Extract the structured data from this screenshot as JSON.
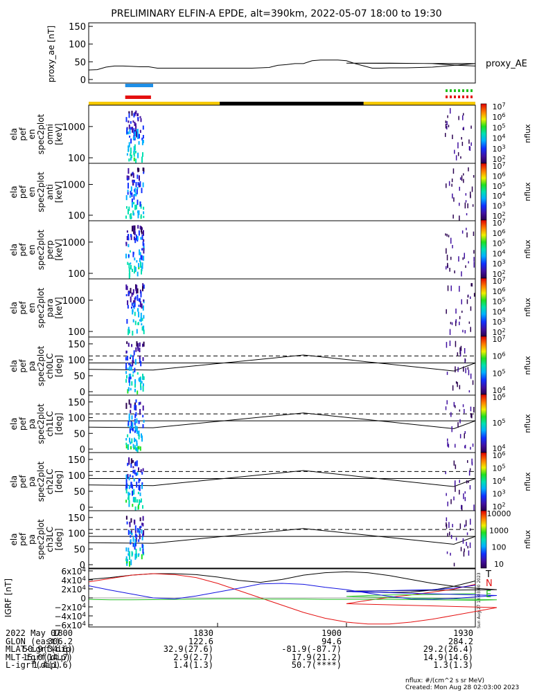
{
  "title": "PRELIMINARY ELFIN-A EPDE, alt=390km, 2022-05-07 18:00 to 19:30",
  "side_stamp": "Sun Aug 27 18:03:00 2023",
  "colors": {
    "yellow": "#f5c800",
    "black": "#000000",
    "blue_bar": "#1e8fe8",
    "red_bar": "#e41010",
    "green_bar": "#20c020",
    "red_dash": "#e41010"
  },
  "chart_data": [
    {
      "type": "line",
      "ylabel": "proxy_ae [nT]",
      "legend": "proxy_AE",
      "yticks": [
        "0",
        "50",
        "100",
        "150"
      ],
      "ylim": [
        -10,
        160
      ],
      "x": [
        1800,
        1802,
        1804,
        1806,
        1808,
        1810,
        1812,
        1814,
        1816,
        1820,
        1830,
        1838,
        1840,
        1842,
        1844,
        1846,
        1848,
        1850,
        1852,
        1854,
        1856,
        1858,
        1860,
        1862,
        1866,
        1868,
        1870,
        1874,
        1880,
        1890,
        1900,
        1910,
        1920,
        1926,
        1930
      ],
      "values": [
        27,
        28,
        35,
        38,
        38,
        37,
        36,
        36,
        32,
        32,
        32,
        32,
        33,
        34,
        40,
        42,
        45,
        45,
        53,
        55,
        55,
        55,
        53,
        45,
        32,
        32,
        33,
        33,
        35,
        45,
        46,
        46,
        45,
        40,
        38
      ]
    },
    {
      "type": "heatmap",
      "ylabel": "ela pef en spec2plot omni [keV]",
      "yticks": [
        "100",
        "1000"
      ],
      "colorbar": {
        "label": "nflux",
        "ticks": [
          "10^2",
          "10^3",
          "10^4",
          "10^5",
          "10^6",
          "10^7"
        ]
      }
    },
    {
      "type": "heatmap",
      "ylabel": "ela pef en spec2plot anti [keV]",
      "yticks": [
        "100",
        "1000"
      ],
      "colorbar": {
        "label": "nflux",
        "ticks": [
          "10^2",
          "10^3",
          "10^4",
          "10^5",
          "10^6",
          "10^7"
        ]
      }
    },
    {
      "type": "heatmap",
      "ylabel": "ela pef en spec2plot perp [keV]",
      "yticks": [
        "100",
        "1000"
      ],
      "colorbar": {
        "label": "nflux",
        "ticks": [
          "10^2",
          "10^3",
          "10^4",
          "10^5",
          "10^6",
          "10^7"
        ]
      }
    },
    {
      "type": "heatmap",
      "ylabel": "ela pef en spec2plot para [keV]",
      "yticks": [
        "100",
        "1000"
      ],
      "colorbar": {
        "label": "nflux",
        "ticks": [
          "10^2",
          "10^3",
          "10^4",
          "10^5",
          "10^6",
          "10^7"
        ]
      }
    },
    {
      "type": "heatmap",
      "ylabel": "ela pef pa spec2plot ch0LC [deg]",
      "yticks": [
        "0",
        "50",
        "100",
        "150"
      ],
      "colorbar": {
        "label": "nflux",
        "ticks": [
          "10^4",
          "10^5",
          "10^6",
          "10^7"
        ]
      }
    },
    {
      "type": "heatmap",
      "ylabel": "ela pef pa spec2plot ch1LC [deg]",
      "yticks": [
        "0",
        "50",
        "100",
        "150"
      ],
      "colorbar": {
        "label": "nflux",
        "ticks": [
          "10^4",
          "10^5",
          "10^6"
        ]
      }
    },
    {
      "type": "heatmap",
      "ylabel": "ela pef pa spec2plot ch2LC [deg]",
      "yticks": [
        "0",
        "50",
        "100",
        "150"
      ],
      "colorbar": {
        "label": "nflux",
        "ticks": [
          "10^2",
          "10^3",
          "10^4",
          "10^5",
          "10^6"
        ]
      }
    },
    {
      "type": "heatmap",
      "ylabel": "ela pef pa spec2plot ch3LC [deg]",
      "yticks": [
        "0",
        "50",
        "100",
        "150"
      ],
      "colorbar": {
        "label": "nflux",
        "ticks": [
          "10",
          "100",
          "1000",
          "10000"
        ]
      }
    },
    {
      "type": "line",
      "ylabel": "IGRF [nT]",
      "yticks": [
        "6x10^4",
        "4x10^4",
        "2x10^4",
        "0",
        "−2x10^4",
        "−4x10^4",
        "−6x10^4"
      ],
      "ylim": [
        -60000,
        60000
      ],
      "x": [
        1800,
        1805,
        1810,
        1815,
        1820,
        1825,
        1830,
        1835,
        1840,
        1845,
        1850,
        1855,
        1860,
        1865,
        1870,
        1875,
        1880,
        1885,
        1890,
        1895,
        1900,
        1905,
        1910,
        1915,
        1920,
        1925,
        1930
      ],
      "series": [
        {
          "name": "T",
          "color": "#000000",
          "values": [
            38000,
            42000,
            47000,
            50000,
            50000,
            48000,
            43000,
            36000,
            32000,
            38000,
            47000,
            52000,
            54000,
            52000,
            46000,
            38000,
            30000,
            24000,
            20000,
            17000,
            14000,
            12000,
            11000,
            12000,
            16000,
            24000,
            35000
          ]
        },
        {
          "name": "N",
          "color": "#e41010",
          "values": [
            33000,
            40000,
            47000,
            50000,
            48000,
            42000,
            30000,
            15000,
            0,
            -15000,
            -30000,
            -42000,
            -50000,
            -54000,
            -54000,
            -50000,
            -44000,
            -36000,
            -28000,
            -20000,
            -12000,
            -5000,
            1000,
            6000,
            12000,
            18000,
            28000
          ]
        },
        {
          "name": "E",
          "color": "#20c020",
          "values": [
            -3000,
            -4000,
            -4000,
            -3500,
            -3000,
            -2500,
            -2000,
            -2000,
            -2500,
            -2500,
            -2500,
            -3000,
            -3000,
            -3000,
            -3000,
            -3500,
            -4000,
            -4500,
            -5000,
            -4000,
            3000,
            5000,
            6000,
            6500,
            7000,
            8000,
            9000
          ]
        },
        {
          "name": "",
          "color": "#1010e0",
          "values": [
            25000,
            16000,
            8000,
            0,
            -2000,
            4000,
            12000,
            20000,
            29000,
            30000,
            28000,
            22000,
            17000,
            10000,
            3000,
            -2000,
            -3000,
            -1000,
            2000,
            5000,
            13000,
            14000,
            15000,
            16000,
            17000,
            20000,
            26000
          ]
        }
      ]
    }
  ],
  "time_ticks": [
    "1800",
    "1830",
    "1900",
    "1930"
  ],
  "footer": {
    "rows": [
      {
        "label": "2022 May 07",
        "values": [
          "1800",
          "1830",
          "1900",
          "1930"
        ]
      },
      {
        "label": "GLON (east)",
        "values": [
          "306.2",
          "122.6",
          "94.6",
          "284.2"
        ]
      },
      {
        "label": "MLAT-igrf(dip)",
        "values": [
          "50.9(34.6)",
          "32.9(27.6)",
          "-81.9(-87.7)",
          "29.2(26.4)"
        ]
      },
      {
        "label": "MLT-igrf(dip)",
        "values": [
          "15.0(14.7)",
          "2.9(2.7)",
          "17.9(21.2)",
          "14.9(14.6)"
        ]
      },
      {
        "label": "L-igrf(dip)",
        "values": [
          "1.4(1.6)",
          "1.4(1.3)",
          "50.7(****)",
          "1.3(1.3)"
        ]
      }
    ],
    "units_note": "nflux: #/(cm^2 s sr MeV)",
    "created": "Created: Mon Aug 28 02:03:00 2023"
  }
}
